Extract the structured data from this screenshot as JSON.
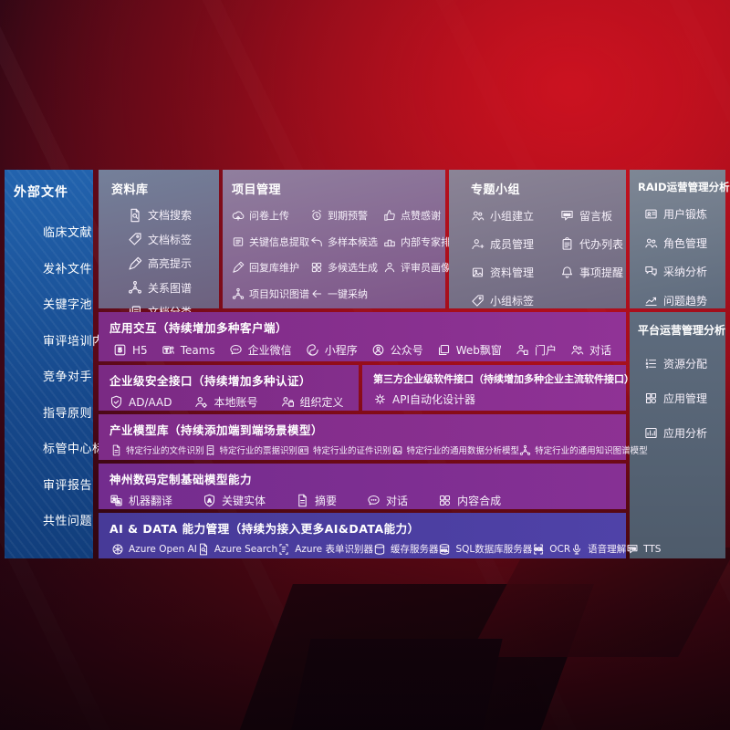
{
  "colors": {
    "bg_red": "#b80f1f",
    "sidebar_blue": "#1b5394",
    "panel_gray": "#74809a",
    "row_purple": "#842d8c",
    "row_indigo": "#4a3d9d"
  },
  "sidebar": {
    "title": "外部文件",
    "items": [
      "临床文献",
      "发补文件",
      "关键字池",
      "审评培训内容",
      "竞争对手",
      "指导原则",
      "标管中心标准",
      "审评报告",
      "共性问题"
    ]
  },
  "repo": {
    "title": "资料库",
    "items": [
      {
        "label": "文档搜索",
        "icon": "doc-search-icon"
      },
      {
        "label": "文档标签",
        "icon": "tag-icon"
      },
      {
        "label": "高亮提示",
        "icon": "highlight-pen-icon"
      },
      {
        "label": "关系图谱",
        "icon": "relation-graph-icon"
      },
      {
        "label": "文档分类",
        "icon": "doc-category-icon"
      }
    ]
  },
  "project": {
    "title": "项目管理",
    "items": [
      {
        "label": "问卷上传",
        "icon": "cloud-upload-icon"
      },
      {
        "label": "到期预警",
        "icon": "alarm-icon"
      },
      {
        "label": "点赞感谢",
        "icon": "thumbs-up-icon"
      },
      {
        "label": "关键信息提取",
        "icon": "info-extract-icon"
      },
      {
        "label": "多样本候选",
        "icon": "multi-sample-icon"
      },
      {
        "label": "内部专家排名",
        "icon": "expert-ranking-icon"
      },
      {
        "label": "回复库维护",
        "icon": "reply-edit-icon"
      },
      {
        "label": "多候选生成",
        "icon": "multi-generate-icon"
      },
      {
        "label": "评审员画像",
        "icon": "reviewer-profile-icon"
      },
      {
        "label": "项目知识图谱",
        "icon": "knowledge-graph-icon"
      },
      {
        "label": "一键采纳",
        "icon": "one-click-adopt-icon"
      }
    ]
  },
  "group": {
    "title": "专题小组",
    "items": [
      {
        "label": "小组建立",
        "icon": "group-create-icon"
      },
      {
        "label": "留言板",
        "icon": "bbs-board-icon"
      },
      {
        "label": "成员管理",
        "icon": "member-manage-icon"
      },
      {
        "label": "代办列表",
        "icon": "todo-list-icon"
      },
      {
        "label": "资料管理",
        "icon": "material-manage-icon"
      },
      {
        "label": "事项提醒",
        "icon": "reminder-bell-icon"
      },
      {
        "label": "小组标签",
        "icon": "group-tag-icon"
      }
    ]
  },
  "raid": {
    "title": "RAID运营管理分析",
    "items": [
      {
        "label": "用户锻炼",
        "icon": "user-card-icon"
      },
      {
        "label": "角色管理",
        "icon": "role-manage-icon"
      },
      {
        "label": "采纳分析",
        "icon": "adopt-analysis-icon"
      },
      {
        "label": "问题趋势",
        "icon": "issue-trend-icon"
      }
    ]
  },
  "platform": {
    "title": "平台运营管理分析",
    "items": [
      {
        "label": "资源分配",
        "icon": "resource-allocation-icon"
      },
      {
        "label": "应用管理",
        "icon": "app-manage-icon"
      },
      {
        "label": "应用分析",
        "icon": "app-analysis-icon"
      }
    ]
  },
  "interact": {
    "title": "应用交互（持续增加多种客户端）",
    "items": [
      {
        "label": "H5",
        "icon": "h5-icon"
      },
      {
        "label": "Teams",
        "icon": "teams-icon"
      },
      {
        "label": "企业微信",
        "icon": "wecom-icon"
      },
      {
        "label": "小程序",
        "icon": "miniprogram-icon"
      },
      {
        "label": "公众号",
        "icon": "official-account-icon"
      },
      {
        "label": "Web飘窗",
        "icon": "web-popup-icon"
      },
      {
        "label": "门户",
        "icon": "portal-icon"
      },
      {
        "label": "对话",
        "icon": "dialog-icon"
      }
    ]
  },
  "security": {
    "title": "企业级安全接口（持续增加多种认证）",
    "items": [
      {
        "label": "AD/AAD",
        "icon": "ad-shield-icon"
      },
      {
        "label": "本地账号",
        "icon": "local-account-icon"
      },
      {
        "label": "组织定义",
        "icon": "org-define-icon"
      }
    ]
  },
  "thirdparty": {
    "title": "第三方企业级软件接口（持续增加多种企业主流软件接口）",
    "items": [
      {
        "label": "API自动化设计器",
        "icon": "api-gear-icon"
      }
    ]
  },
  "industry": {
    "title": "产业模型库（持续添加端到端场景模型）",
    "items": [
      {
        "label": "特定行业的文件识别",
        "icon": "file-recognition-icon"
      },
      {
        "label": "特定行业的票据识别",
        "icon": "receipt-recognition-icon"
      },
      {
        "label": "特定行业的证件识别",
        "icon": "certificate-recognition-icon"
      },
      {
        "label": "特定行业的通用数据分析模型",
        "icon": "data-analysis-model-icon"
      },
      {
        "label": "特定行业的通用知识图谱模型",
        "icon": "knowledge-graph-model-icon"
      }
    ]
  },
  "shenzhou": {
    "title": "神州数码定制基础模型能力",
    "items": [
      {
        "label": "机器翻译",
        "icon": "translate-icon"
      },
      {
        "label": "关键实体",
        "icon": "key-entity-icon"
      },
      {
        "label": "摘要",
        "icon": "summary-icon"
      },
      {
        "label": "对话",
        "icon": "chat-icon"
      },
      {
        "label": "内容合成",
        "icon": "content-compose-icon"
      }
    ]
  },
  "aidata": {
    "title": "AI & DATA 能力管理（持续为接入更多AI&DATA能力）",
    "items": [
      {
        "label": "Azure Open AI",
        "icon": "openai-icon"
      },
      {
        "label": "Azure Search",
        "icon": "azure-search-icon"
      },
      {
        "label": "Azure 表单识别器",
        "icon": "form-recognizer-icon"
      },
      {
        "label": "缓存服务器",
        "icon": "cache-server-icon"
      },
      {
        "label": "SQL数据库服务器",
        "icon": "sql-server-icon"
      },
      {
        "label": "OCR",
        "icon": "ocr-icon"
      },
      {
        "label": "语音理解",
        "icon": "speech-icon"
      },
      {
        "label": "TTS",
        "icon": "tts-icon"
      }
    ]
  }
}
